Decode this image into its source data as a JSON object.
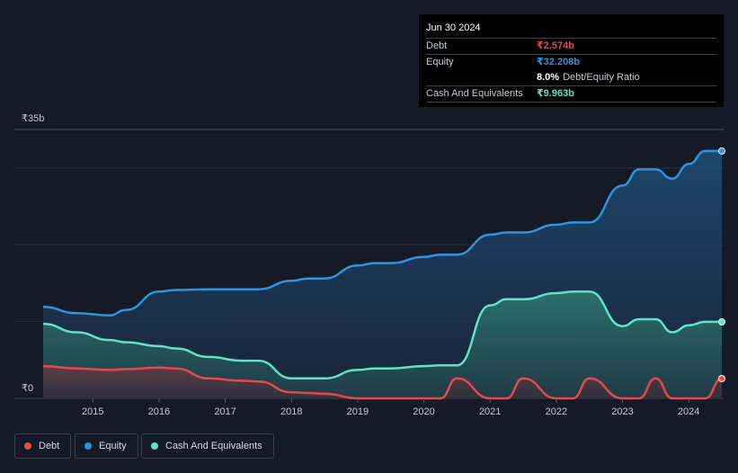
{
  "tooltip": {
    "date": "Jun 30 2024",
    "rows": {
      "debt": {
        "label": "Debt",
        "value": "₹2.574b"
      },
      "equity": {
        "label": "Equity",
        "value": "₹32.208b"
      },
      "ratio": {
        "value": "8.0%",
        "label": "Debt/Equity Ratio"
      },
      "cash": {
        "label": "Cash And Equivalents",
        "value": "₹9.963b"
      }
    }
  },
  "legend": [
    {
      "label": "Debt"
    },
    {
      "label": "Equity"
    },
    {
      "label": "Cash And Equivalents"
    }
  ],
  "colors": {
    "debt": "#e5484d",
    "equity": "#2e94e0",
    "cash": "#5fe3c8",
    "background": "#151b26"
  },
  "chart_data": {
    "type": "area",
    "title": "",
    "xlabel": "",
    "ylabel": "",
    "ylim": [
      0,
      35
    ],
    "y_unit": "₹b",
    "y_tick_labels": [
      "₹0",
      "₹35b"
    ],
    "x_tick_labels": [
      "2015",
      "2016",
      "2017",
      "2018",
      "2019",
      "2020",
      "2021",
      "2022",
      "2023",
      "2024"
    ],
    "x_ticks": [
      2015,
      2016,
      2017,
      2018,
      2019,
      2020,
      2021,
      2022,
      2023,
      2024
    ],
    "xlim": [
      2014.25,
      2024.5
    ],
    "gridlines": [
      10,
      20,
      30,
      35
    ],
    "series": [
      {
        "name": "Equity",
        "x": [
          2014.25,
          2014.75,
          2015.25,
          2015.5,
          2016.0,
          2016.25,
          2016.75,
          2017.25,
          2017.5,
          2018.0,
          2018.25,
          2018.5,
          2019.0,
          2019.25,
          2019.5,
          2020.0,
          2020.25,
          2020.5,
          2021.0,
          2021.25,
          2021.5,
          2022.0,
          2022.25,
          2022.5,
          2023.0,
          2023.25,
          2023.5,
          2023.75,
          2024.0,
          2024.25,
          2024.5
        ],
        "values": [
          11.9,
          11.1,
          10.8,
          11.5,
          13.9,
          14.1,
          14.2,
          14.2,
          14.2,
          15.3,
          15.6,
          15.6,
          17.3,
          17.6,
          17.6,
          18.4,
          18.7,
          18.7,
          21.3,
          21.6,
          21.6,
          22.6,
          22.9,
          22.9,
          27.7,
          29.8,
          29.8,
          28.6,
          30.5,
          32.2,
          32.2
        ]
      },
      {
        "name": "Cash And Equivalents",
        "x": [
          2014.25,
          2014.75,
          2015.25,
          2015.5,
          2016.0,
          2016.25,
          2016.75,
          2017.25,
          2017.5,
          2018.0,
          2018.25,
          2018.5,
          2019.0,
          2019.25,
          2019.5,
          2020.0,
          2020.25,
          2020.5,
          2021.0,
          2021.25,
          2021.5,
          2022.0,
          2022.25,
          2022.5,
          2023.0,
          2023.25,
          2023.5,
          2023.75,
          2024.0,
          2024.25,
          2024.5
        ],
        "values": [
          9.7,
          8.6,
          7.6,
          7.3,
          6.8,
          6.5,
          5.4,
          4.9,
          4.9,
          2.6,
          2.6,
          2.6,
          3.7,
          3.9,
          3.9,
          4.2,
          4.3,
          4.3,
          12.1,
          12.9,
          12.9,
          13.7,
          13.9,
          13.9,
          9.4,
          10.3,
          10.3,
          8.6,
          9.5,
          9.96,
          9.96
        ]
      },
      {
        "name": "Debt",
        "x": [
          2014.25,
          2014.75,
          2015.25,
          2015.5,
          2016.0,
          2016.25,
          2016.75,
          2017.25,
          2017.5,
          2018.0,
          2018.25,
          2018.5,
          2019.0,
          2019.25,
          2019.5,
          2020.0,
          2020.25,
          2020.5,
          2021.0,
          2021.25,
          2021.5,
          2022.0,
          2022.25,
          2022.5,
          2023.0,
          2023.25,
          2023.5,
          2023.75,
          2024.0,
          2024.25,
          2024.5
        ],
        "values": [
          4.2,
          3.9,
          3.7,
          3.8,
          4.0,
          3.9,
          2.6,
          2.3,
          2.2,
          0.8,
          0.7,
          0.6,
          0.0,
          0.0,
          0.0,
          0.0,
          0.0,
          2.6,
          0.0,
          0.0,
          2.6,
          0.0,
          0.0,
          2.6,
          0.0,
          0.0,
          2.6,
          0.0,
          0.0,
          0.0,
          2.574
        ]
      }
    ]
  }
}
